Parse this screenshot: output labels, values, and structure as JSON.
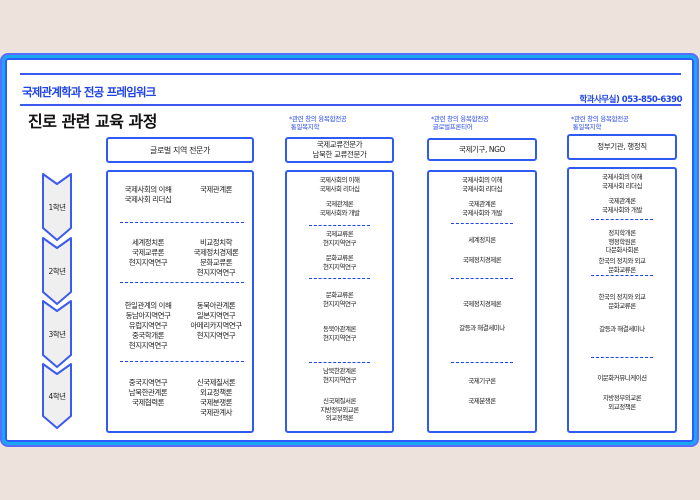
{
  "header": {
    "title": "국제관계학과 전공 프레임워크",
    "phone": "학과사무실) 053-850-6390",
    "subtitle": "진로 관련 교육 과정"
  },
  "years": [
    "1학년",
    "2학년",
    "3학년",
    "4학년"
  ],
  "colors": {
    "accent": "#2f5bf2",
    "frame": "#1aa6f0",
    "year_fill": "#efefef"
  },
  "columns": [
    {
      "note": "",
      "header": "글로벌 지역 전문가",
      "rows": [
        {
          "left": "국제사회의 이해\n국제사회 리더십",
          "right": "국제관계론"
        },
        {
          "left": "세계정치론\n국제교류론\n현지지역연구",
          "right": "비교정치학\n국제정치경제론\n문화교류론\n현지지역연구"
        },
        {
          "left": "한일관계의 이해\n동남아지역연구\n유럽지역연구\n중국학개론\n현지지역연구",
          "right": "동북아관계론\n일본지역연구\n아메리카지역연구\n현지지역연구"
        },
        {
          "left": "중국지역연구\n남북한관계론\n국제협력론",
          "right": "신국제질서론\n외교정책론\n국제분쟁론\n국제관계사"
        }
      ]
    },
    {
      "note": "*관련 창의 융복합전공\n 통일복지학",
      "header": "국제교류전문가\n남북한 교류전문가",
      "rows": [
        [
          "국제사회의 이해\n국제사회 리더십",
          "국제관계론\n국제사회와 개발"
        ],
        [
          "국제교류론\n현지지역연구",
          "문화교류론\n현지지역연구"
        ],
        [
          "문화교류론\n현지지역연구",
          "동북아관계론\n현지지역연구"
        ],
        [
          "남북한관계론\n현지지역연구",
          "신국제질서론\n지방정부외교론\n외교정책론"
        ]
      ]
    },
    {
      "note": "*관련 창의 융복합전공\n 글로벌프론티어",
      "header": "국제기구, NGO",
      "rows": [
        [
          "국제사회의 이해\n국제사회 리더십",
          "국제관계론\n국제사회와 개발"
        ],
        [
          "세계정치론",
          "국제정치경제론"
        ],
        [
          "국제정치경제론",
          "갈등과 해결세미나"
        ],
        [
          "국제기구론",
          "국제분쟁론"
        ]
      ]
    },
    {
      "note": "*관련 창의 융복합전공\n 통일복지학",
      "header": "정부기관, 행정직",
      "rows": [
        [
          "국제사회의 이해\n국제사회 리더십",
          "국제관계론\n국제사회와 개발"
        ],
        [
          "정치학개론\n행정학원론\n다문화사회론",
          "한국의 정치와 외교\n문화교류론"
        ],
        [
          "한국의 정치와 외교\n문화교류론",
          "갈등과 해결세미나"
        ],
        [
          "이문화커뮤니케이션",
          "지방정부외교론\n외교정책론"
        ]
      ]
    }
  ]
}
